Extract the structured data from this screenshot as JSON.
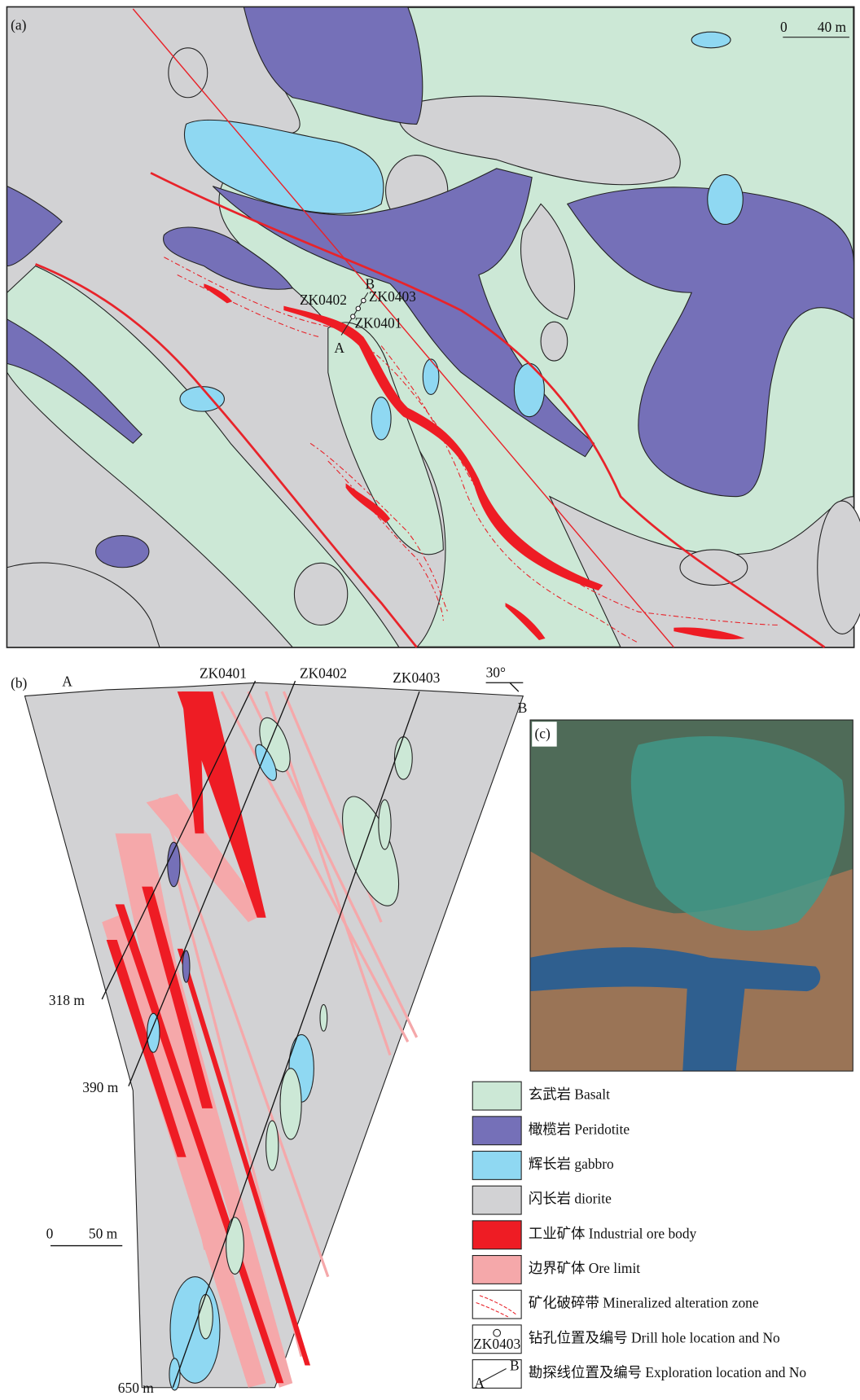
{
  "map": {
    "label": "(a)",
    "scale": {
      "zero": "0",
      "length": "40 m"
    },
    "section_line": {
      "start": "A",
      "end": "B"
    },
    "drill_holes": [
      "ZK0402",
      "ZK0403",
      "ZK0401"
    ]
  },
  "section": {
    "label": "(b)",
    "ends": [
      "A",
      "B"
    ],
    "drill_holes": [
      "ZK0401",
      "ZK0402",
      "ZK0403"
    ],
    "dip": "30°",
    "depths": [
      "318 m",
      "390 m",
      "650 m"
    ],
    "scale": {
      "zero": "0",
      "length": "50 m"
    }
  },
  "photo": {
    "label": "(c)"
  },
  "legend": [
    {
      "label": "玄武岩 Basalt"
    },
    {
      "label": "橄榄岩 Peridotite"
    },
    {
      "label": "辉长岩 gabbro"
    },
    {
      "label": "闪长岩 diorite"
    },
    {
      "label": "工业矿体 Industrial ore body"
    },
    {
      "label": "边界矿体 Ore limit"
    },
    {
      "label": "矿化破碎带 Mineralized alteration zone"
    },
    {
      "label": "钻孔位置及编号 Drill hole location and No",
      "icon_label": "ZK0403"
    },
    {
      "label": "勘探线位置及编号 Exploration location and No",
      "icon_labels": [
        "B",
        "A"
      ]
    }
  ]
}
